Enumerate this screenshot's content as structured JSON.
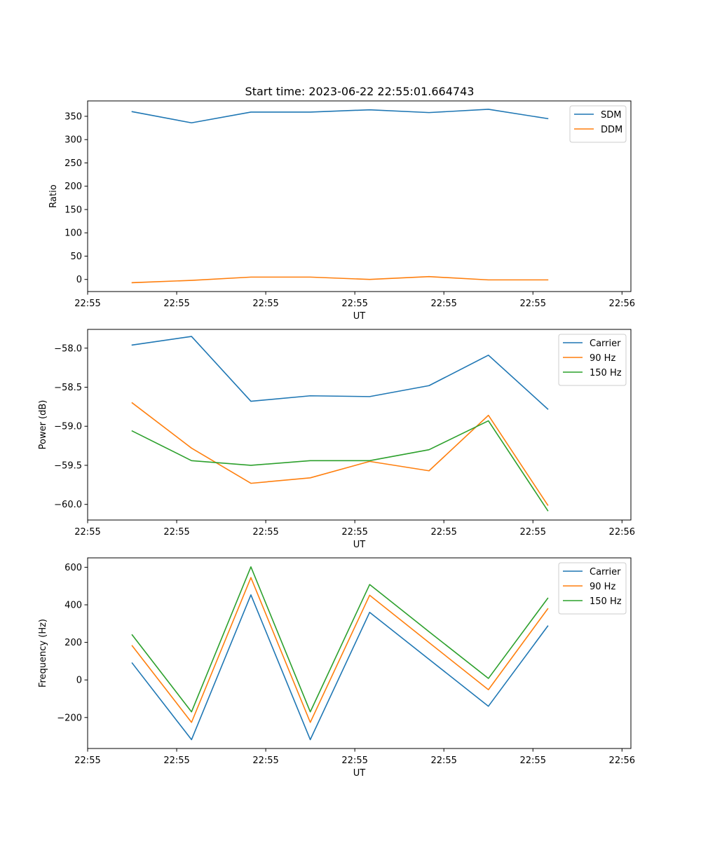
{
  "figure": {
    "title": "Start time: 2023-06-22 22:55:01.664743"
  },
  "chart_data": [
    {
      "type": "line",
      "title": "Start time: 2023-06-22 22:55:01.664743",
      "xlabel": "UT",
      "ylabel": "Ratio",
      "x": [
        0,
        1,
        2,
        3,
        4,
        5,
        6,
        7
      ],
      "xlim": [
        -0.75,
        8.4
      ],
      "xticks": [
        -0.75,
        0.75,
        2.25,
        3.75,
        5.25,
        6.75,
        8.25
      ],
      "xtick_labels": [
        "22:55",
        "22:55",
        "22:55",
        "22:55",
        "22:55",
        "22:55",
        "22:56"
      ],
      "ylim": [
        -26,
        383
      ],
      "yticks": [
        0,
        50,
        100,
        150,
        200,
        250,
        300,
        350
      ],
      "ytick_labels": [
        "0",
        "50",
        "100",
        "150",
        "200",
        "250",
        "300",
        "350"
      ],
      "legend_position": "top-right",
      "series": [
        {
          "name": "SDM",
          "color": "#1f77b4",
          "values": [
            360,
            336,
            359,
            359,
            364,
            358,
            365,
            345
          ]
        },
        {
          "name": "DDM",
          "color": "#ff7f0e",
          "values": [
            -7,
            -2,
            5,
            5,
            0,
            6,
            -1,
            -1
          ]
        }
      ]
    },
    {
      "type": "line",
      "xlabel": "UT",
      "ylabel": "Power (dB)",
      "x": [
        0,
        1,
        2,
        3,
        4,
        5,
        6,
        7
      ],
      "xlim": [
        -0.75,
        8.4
      ],
      "xticks": [
        -0.75,
        0.75,
        2.25,
        3.75,
        5.25,
        6.75,
        8.25
      ],
      "xtick_labels": [
        "22:55",
        "22:55",
        "22:55",
        "22:55",
        "22:55",
        "22:55",
        "22:56"
      ],
      "ylim": [
        -60.2,
        -57.76
      ],
      "yticks": [
        -60.0,
        -59.5,
        -59.0,
        -58.5,
        -58.0
      ],
      "ytick_labels": [
        "−60.0",
        "−59.5",
        "−59.0",
        "−58.5",
        "−58.0"
      ],
      "legend_position": "top-right",
      "series": [
        {
          "name": "Carrier",
          "color": "#1f77b4",
          "values": [
            -57.96,
            -57.85,
            -58.68,
            -58.61,
            -58.62,
            -58.48,
            -58.09,
            -58.78
          ]
        },
        {
          "name": "90 Hz",
          "color": "#ff7f0e",
          "values": [
            -58.7,
            -59.28,
            -59.73,
            -59.66,
            -59.45,
            -59.57,
            -58.86,
            -60.01
          ]
        },
        {
          "name": "150 Hz",
          "color": "#2ca02c",
          "values": [
            -59.06,
            -59.44,
            -59.5,
            -59.44,
            -59.44,
            -59.3,
            -58.93,
            -60.08
          ]
        }
      ]
    },
    {
      "type": "line",
      "xlabel": "UT",
      "ylabel": "Frequency (Hz)",
      "x": [
        0,
        1,
        2,
        3,
        4,
        5,
        6,
        7
      ],
      "xlim": [
        -0.75,
        8.4
      ],
      "xticks": [
        -0.75,
        0.75,
        2.25,
        3.75,
        5.25,
        6.75,
        8.25
      ],
      "xtick_labels": [
        "22:55",
        "22:55",
        "22:55",
        "22:55",
        "22:55",
        "22:55",
        "22:56"
      ],
      "ylim": [
        -365,
        650
      ],
      "yticks": [
        -200,
        0,
        200,
        400,
        600
      ],
      "ytick_labels": [
        "−200",
        "0",
        "200",
        "400",
        "600"
      ],
      "legend_position": "top-right",
      "series": [
        {
          "name": "Carrier",
          "color": "#1f77b4",
          "values": [
            90,
            -318,
            453,
            -318,
            360,
            110,
            -140,
            287
          ]
        },
        {
          "name": "90 Hz",
          "color": "#ff7f0e",
          "values": [
            182,
            -226,
            545,
            -226,
            451,
            199,
            -52,
            379
          ]
        },
        {
          "name": "150 Hz",
          "color": "#2ca02c",
          "values": [
            240,
            -170,
            602,
            -170,
            508,
            257,
            8,
            435
          ]
        }
      ]
    }
  ]
}
